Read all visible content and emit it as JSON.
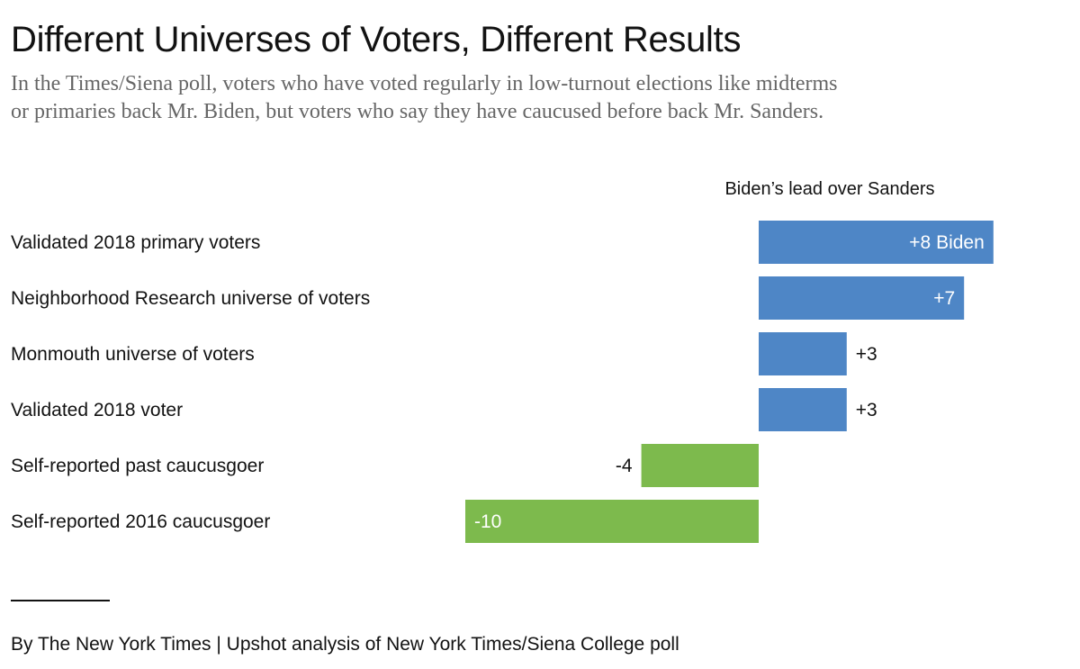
{
  "chart_data": {
    "type": "bar",
    "orientation": "horizontal",
    "title": "Different Universes of Voters, Different Results",
    "subtitle_lines": [
      "In the Times/Siena poll, voters who have voted regularly in low-turnout elections like midterms",
      "or primaries back Mr. Biden, but voters who say they have caucused before back Mr. Sanders."
    ],
    "axis_title": "Biden’s lead over Sanders",
    "xlim": [
      -10,
      8.5
    ],
    "categories": [
      "Validated 2018 primary voters",
      "Neighborhood Research universe of voters",
      "Monmouth universe of voters",
      "Validated 2018 voter",
      "Self-reported past caucusgoer",
      "Self-reported 2016 caucusgoer"
    ],
    "values": [
      8,
      7,
      3,
      3,
      -4,
      -10
    ],
    "value_labels": [
      "+8 Biden",
      "+7",
      "+3",
      "+3",
      "-4",
      "-10"
    ],
    "colors": {
      "biden_lead": "#4e86c6",
      "sanders_lead": "#7dba4d"
    },
    "source": "By The New York Times | Upshot analysis of New York Times/Siena College poll"
  }
}
